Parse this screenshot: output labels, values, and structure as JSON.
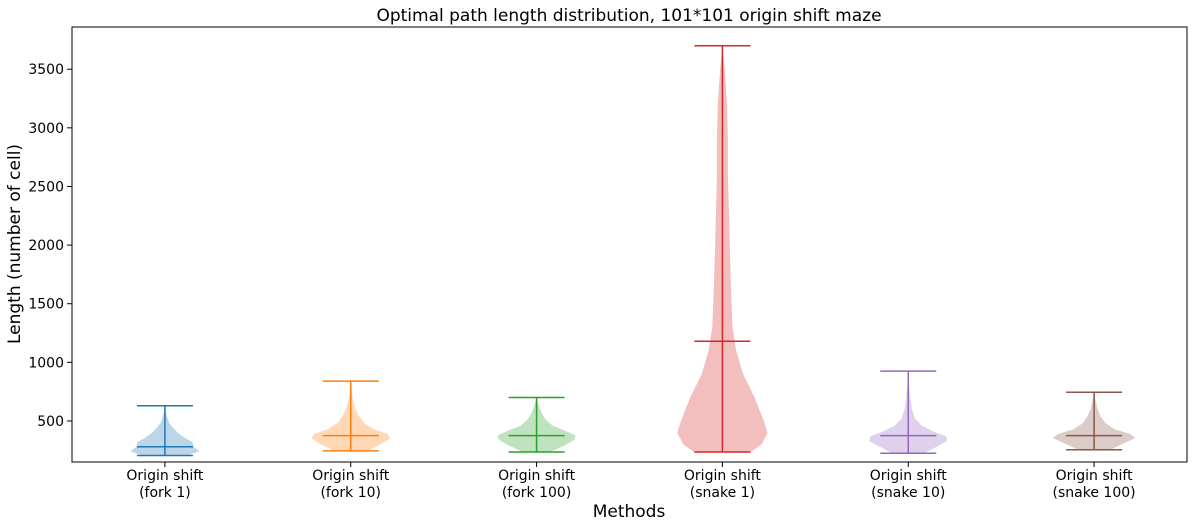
{
  "chart_data": {
    "type": "violin",
    "title": "Optimal path length distribution, 101*101 origin shift maze",
    "xlabel": "Methods",
    "ylabel": "Length (number of cell)",
    "ylim": [
      150,
      3860
    ],
    "yticks": [
      500,
      1000,
      1500,
      2000,
      2500,
      3000,
      3500
    ],
    "grid": false,
    "series": [
      {
        "label_line1": "Origin shift",
        "label_line2": "(fork 1)",
        "color": "#1f77b4",
        "min": 205,
        "median": 280,
        "max": 630,
        "density": [
          [
            205,
            0.47
          ],
          [
            240,
            0.75
          ],
          [
            280,
            0.62
          ],
          [
            320,
            0.6
          ],
          [
            360,
            0.42
          ],
          [
            400,
            0.28
          ],
          [
            440,
            0.18
          ],
          [
            480,
            0.1
          ],
          [
            530,
            0.05
          ],
          [
            580,
            0.02
          ],
          [
            630,
            0.0
          ]
        ]
      },
      {
        "label_line1": "Origin shift",
        "label_line2": "(fork 10)",
        "color": "#ff7f0e",
        "min": 245,
        "median": 375,
        "max": 840,
        "density": [
          [
            245,
            0.35
          ],
          [
            300,
            0.65
          ],
          [
            350,
            0.85
          ],
          [
            390,
            0.8
          ],
          [
            430,
            0.5
          ],
          [
            480,
            0.3
          ],
          [
            540,
            0.18
          ],
          [
            600,
            0.1
          ],
          [
            680,
            0.05
          ],
          [
            760,
            0.02
          ],
          [
            840,
            0.0
          ]
        ]
      },
      {
        "label_line1": "Origin shift",
        "label_line2": "(fork 100)",
        "color": "#2ca02c",
        "min": 235,
        "median": 375,
        "max": 700,
        "density": [
          [
            235,
            0.3
          ],
          [
            290,
            0.6
          ],
          [
            340,
            0.82
          ],
          [
            375,
            0.85
          ],
          [
            420,
            0.6
          ],
          [
            460,
            0.35
          ],
          [
            510,
            0.2
          ],
          [
            560,
            0.12
          ],
          [
            620,
            0.06
          ],
          [
            660,
            0.03
          ],
          [
            700,
            0.0
          ]
        ]
      },
      {
        "label_line1": "Origin shift",
        "label_line2": "(snake 1)",
        "color": "#d62728",
        "min": 235,
        "median": 1180,
        "max": 3700,
        "density": [
          [
            235,
            0.62
          ],
          [
            300,
            0.85
          ],
          [
            400,
            0.98
          ],
          [
            500,
            0.9
          ],
          [
            700,
            0.7
          ],
          [
            900,
            0.45
          ],
          [
            1100,
            0.3
          ],
          [
            1300,
            0.22
          ],
          [
            1500,
            0.2
          ],
          [
            1700,
            0.18
          ],
          [
            2000,
            0.16
          ],
          [
            2300,
            0.14
          ],
          [
            2600,
            0.12
          ],
          [
            2900,
            0.12
          ],
          [
            3200,
            0.1
          ],
          [
            3500,
            0.05
          ],
          [
            3700,
            0.0
          ]
        ]
      },
      {
        "label_line1": "Origin shift",
        "label_line2": "(snake 10)",
        "color": "#9467bd",
        "min": 225,
        "median": 375,
        "max": 925,
        "density": [
          [
            225,
            0.35
          ],
          [
            280,
            0.62
          ],
          [
            330,
            0.85
          ],
          [
            370,
            0.82
          ],
          [
            410,
            0.55
          ],
          [
            460,
            0.3
          ],
          [
            520,
            0.15
          ],
          [
            600,
            0.08
          ],
          [
            700,
            0.04
          ],
          [
            800,
            0.02
          ],
          [
            925,
            0.0
          ]
        ]
      },
      {
        "label_line1": "Origin shift",
        "label_line2": "(snake 100)",
        "color": "#8c564b",
        "min": 255,
        "median": 375,
        "max": 745,
        "density": [
          [
            255,
            0.35
          ],
          [
            310,
            0.65
          ],
          [
            355,
            0.9
          ],
          [
            390,
            0.78
          ],
          [
            430,
            0.45
          ],
          [
            480,
            0.25
          ],
          [
            540,
            0.14
          ],
          [
            610,
            0.07
          ],
          [
            680,
            0.03
          ],
          [
            745,
            0.0
          ]
        ]
      }
    ]
  }
}
